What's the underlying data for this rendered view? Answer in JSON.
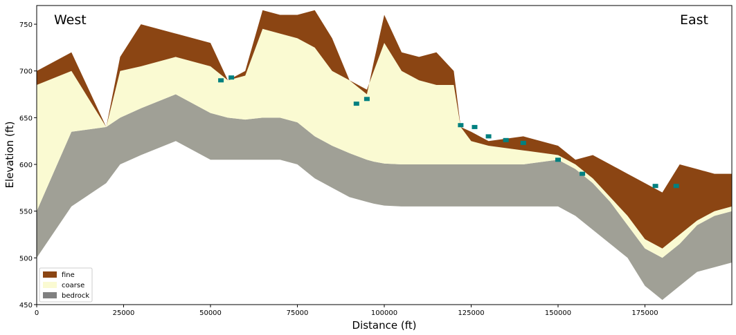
{
  "colors": {
    "fine": "#8b4513",
    "coarse": "#fafad2",
    "bedrock": "#a0a096",
    "bedrock_legend": "#808080",
    "water": "#008080"
  },
  "chart_data": {
    "type": "area",
    "title": "",
    "xlabel": "Distance (ft)",
    "ylabel": "Elevation (ft)",
    "xlim": [
      0,
      200000
    ],
    "ylim": [
      450,
      770
    ],
    "xticks": [
      0,
      25000,
      50000,
      75000,
      100000,
      125000,
      150000,
      175000
    ],
    "xtick_labels": [
      "0",
      "25000",
      "50000",
      "75000",
      "100000",
      "125000",
      "150000",
      "175000"
    ],
    "yticks": [
      450,
      500,
      550,
      600,
      650,
      700,
      750
    ],
    "ytick_labels": [
      "450",
      "500",
      "550",
      "600",
      "650",
      "700",
      "750"
    ],
    "annotations": [
      "West",
      "East"
    ],
    "legend": {
      "placement": "lower-left",
      "entries": [
        "fine",
        "coarse",
        "bedrock"
      ]
    },
    "grid": false,
    "x": [
      0,
      10000,
      20000,
      24000,
      30000,
      40000,
      50000,
      55000,
      60000,
      65000,
      70000,
      75000,
      80000,
      85000,
      90000,
      95000,
      97000,
      100000,
      105000,
      110000,
      115000,
      120000,
      122000,
      125000,
      130000,
      140000,
      150000,
      155000,
      160000,
      165000,
      170000,
      175000,
      180000,
      185000,
      190000,
      195000,
      200000
    ],
    "series": [
      {
        "name": "bedrock",
        "bottom": [
          500,
          555,
          580,
          600,
          610,
          625,
          605,
          605,
          605,
          605,
          605,
          600,
          585,
          575,
          565,
          560,
          558,
          556,
          555,
          555,
          555,
          555,
          555,
          555,
          555,
          555,
          555,
          545,
          530,
          515,
          500,
          470,
          455,
          470,
          485,
          490,
          495
        ],
        "top": [
          550,
          635,
          640,
          650,
          660,
          675,
          655,
          650,
          648,
          650,
          650,
          645,
          630,
          620,
          612,
          605,
          603,
          601,
          600,
          600,
          600,
          600,
          600,
          600,
          600,
          600,
          605,
          595,
          580,
          560,
          535,
          510,
          500,
          515,
          535,
          545,
          550
        ]
      },
      {
        "name": "coarse",
        "bottom": [
          550,
          635,
          640,
          650,
          660,
          675,
          655,
          650,
          648,
          650,
          650,
          645,
          630,
          620,
          612,
          605,
          603,
          601,
          600,
          600,
          600,
          600,
          600,
          600,
          600,
          600,
          605,
          595,
          580,
          560,
          535,
          510,
          500,
          515,
          535,
          545,
          550
        ],
        "top": [
          685,
          700,
          640,
          700,
          705,
          715,
          705,
          690,
          695,
          745,
          740,
          735,
          725,
          700,
          690,
          680,
          700,
          730,
          700,
          690,
          685,
          685,
          640,
          625,
          620,
          615,
          610,
          600,
          585,
          565,
          545,
          520,
          510,
          525,
          540,
          550,
          555
        ]
      },
      {
        "name": "fine",
        "bottom": [
          685,
          700,
          640,
          700,
          705,
          715,
          705,
          690,
          695,
          745,
          740,
          735,
          725,
          700,
          690,
          680,
          700,
          730,
          700,
          690,
          685,
          685,
          640,
          625,
          620,
          615,
          610,
          600,
          585,
          565,
          545,
          520,
          510,
          525,
          540,
          550,
          555
        ],
        "top": [
          700,
          720,
          640,
          715,
          750,
          740,
          730,
          690,
          700,
          765,
          760,
          760,
          765,
          735,
          690,
          675,
          710,
          760,
          720,
          715,
          720,
          700,
          640,
          635,
          625,
          630,
          620,
          605,
          610,
          600,
          590,
          580,
          570,
          600,
          595,
          590,
          590
        ]
      },
      {
        "name": "water",
        "x": [
          53000,
          56000,
          92000,
          95000,
          122000,
          126000,
          130000,
          135000,
          140000,
          150000,
          157000,
          178000,
          184000
        ],
        "elevation": [
          690,
          693,
          665,
          670,
          642,
          640,
          630,
          626,
          623,
          605,
          590,
          577,
          577
        ]
      }
    ]
  }
}
